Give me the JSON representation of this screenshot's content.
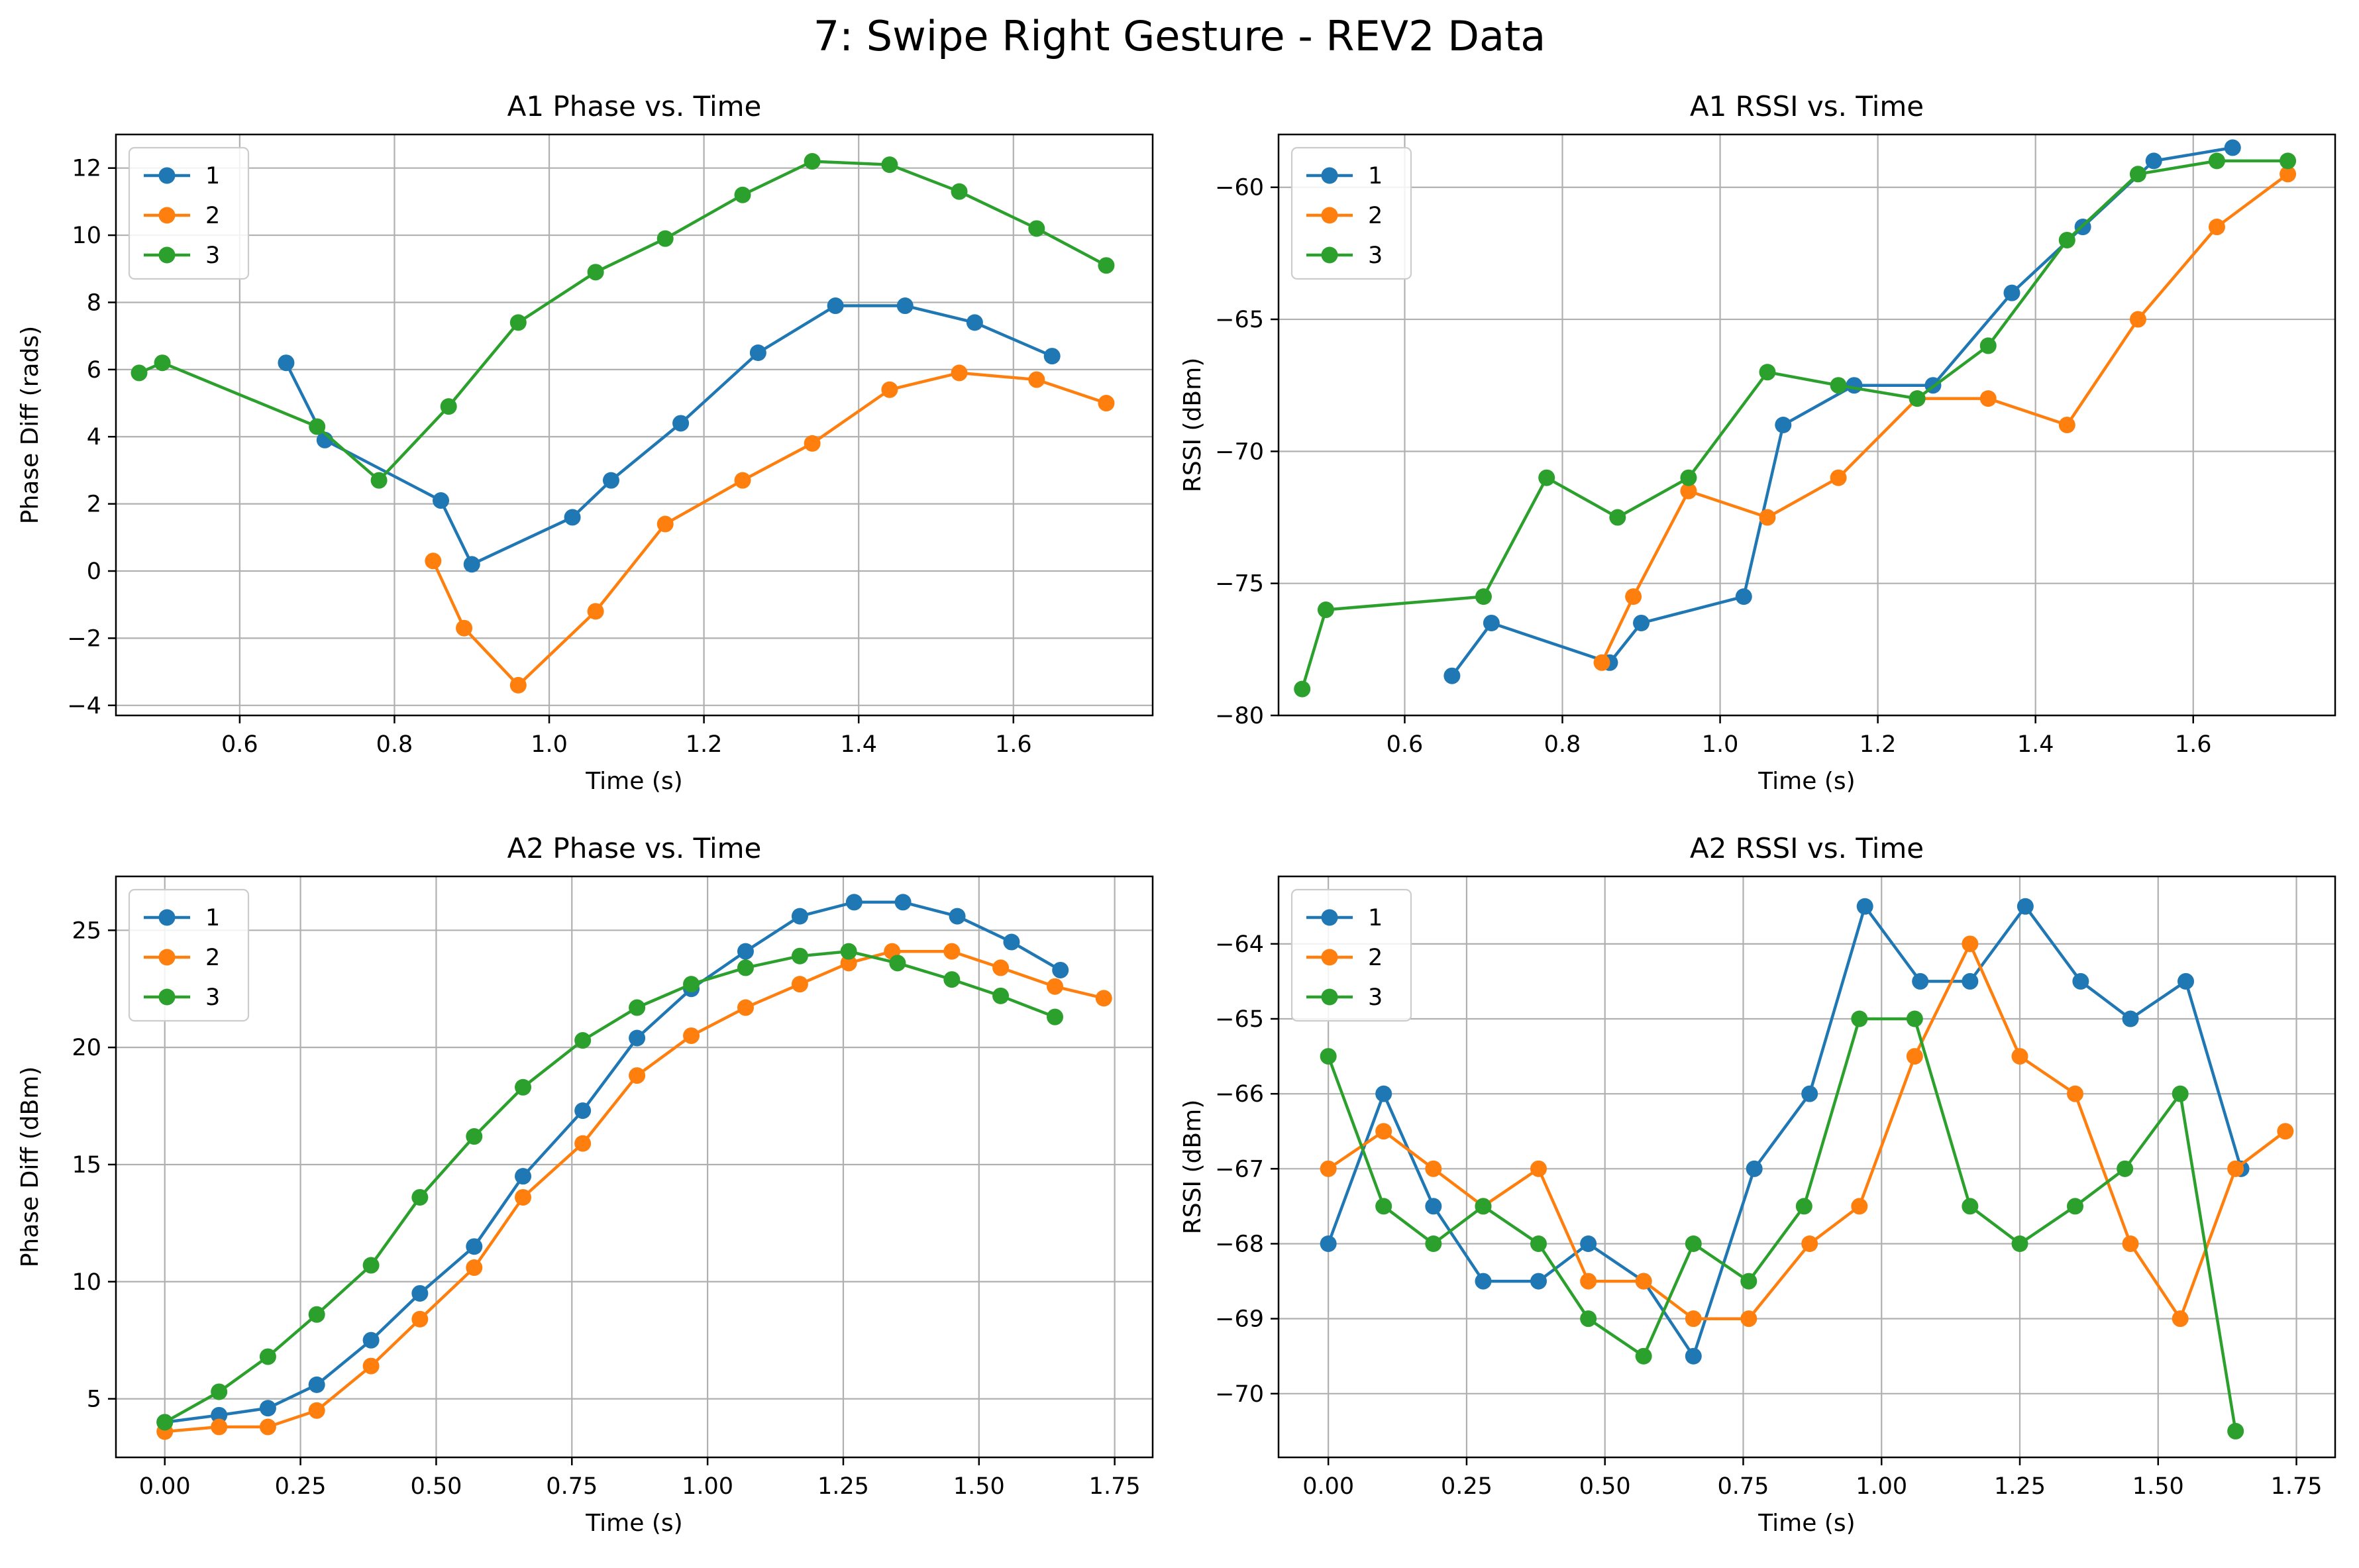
{
  "figure": {
    "title": "7: Swipe Right Gesture - REV2 Data"
  },
  "colors": {
    "s1": "#1f77b4",
    "s2": "#ff7f0e",
    "s3": "#2ca02c"
  },
  "chart_data": [
    {
      "type": "line",
      "title": "A1 Phase vs. Time",
      "xlabel": "Time (s)",
      "ylabel": "Phase Diff (rads)",
      "xlim": [
        0.44,
        1.78
      ],
      "ylim": [
        -4.3,
        13.0
      ],
      "xticks": [
        0.6,
        0.8,
        1.0,
        1.2,
        1.4,
        1.6
      ],
      "xtick_labels": [
        "0.6",
        "0.8",
        "1.0",
        "1.2",
        "1.4",
        "1.6"
      ],
      "yticks": [
        -4,
        -2,
        0,
        2,
        4,
        6,
        8,
        10,
        12
      ],
      "ytick_labels": [
        "−4",
        "−2",
        "0",
        "2",
        "4",
        "6",
        "8",
        "10",
        "12"
      ],
      "legend": "upper-left",
      "grid": true,
      "series": [
        {
          "name": "1",
          "x": [
            0.66,
            0.71,
            0.86,
            0.9,
            1.03,
            1.08,
            1.17,
            1.27,
            1.37,
            1.46,
            1.55,
            1.65
          ],
          "y": [
            6.2,
            3.9,
            2.1,
            0.2,
            1.6,
            2.7,
            4.4,
            6.5,
            7.9,
            7.9,
            7.4,
            6.4
          ]
        },
        {
          "name": "2",
          "x": [
            0.85,
            0.89,
            0.96,
            1.06,
            1.15,
            1.25,
            1.34,
            1.44,
            1.53,
            1.63,
            1.72
          ],
          "y": [
            0.3,
            -1.7,
            -3.4,
            -1.2,
            1.4,
            2.7,
            3.8,
            5.4,
            5.9,
            5.7,
            5.0
          ]
        },
        {
          "name": "3",
          "x": [
            0.47,
            0.5,
            0.7,
            0.78,
            0.87,
            0.96,
            1.06,
            1.15,
            1.25,
            1.34,
            1.44,
            1.53,
            1.63,
            1.72
          ],
          "y": [
            5.9,
            6.2,
            4.3,
            2.7,
            4.9,
            7.4,
            8.9,
            9.9,
            11.2,
            12.2,
            12.1,
            11.3,
            10.2,
            9.1
          ]
        }
      ]
    },
    {
      "type": "line",
      "title": "A1 RSSI vs. Time",
      "xlabel": "Time (s)",
      "ylabel": "RSSI (dBm)",
      "xlim": [
        0.44,
        1.78
      ],
      "ylim": [
        -80,
        -58.0
      ],
      "xticks": [
        0.6,
        0.8,
        1.0,
        1.2,
        1.4,
        1.6
      ],
      "xtick_labels": [
        "0.6",
        "0.8",
        "1.0",
        "1.2",
        "1.4",
        "1.6"
      ],
      "yticks": [
        -80,
        -75,
        -70,
        -65,
        -60
      ],
      "ytick_labels": [
        "−80",
        "−75",
        "−70",
        "−65",
        "−60"
      ],
      "legend": "upper-left",
      "grid": true,
      "series": [
        {
          "name": "1",
          "x": [
            0.66,
            0.71,
            0.86,
            0.9,
            1.03,
            1.08,
            1.17,
            1.27,
            1.37,
            1.46,
            1.55,
            1.65
          ],
          "y": [
            -78.5,
            -76.5,
            -78,
            -76.5,
            -75.5,
            -69,
            -67.5,
            -67.5,
            -64,
            -61.5,
            -59,
            -58.5
          ]
        },
        {
          "name": "2",
          "x": [
            0.85,
            0.89,
            0.96,
            1.06,
            1.15,
            1.25,
            1.34,
            1.44,
            1.53,
            1.63,
            1.72
          ],
          "y": [
            -78,
            -75.5,
            -71.5,
            -72.5,
            -71,
            -68,
            -68,
            -69,
            -65,
            -61.5,
            -59.5
          ]
        },
        {
          "name": "3",
          "x": [
            0.47,
            0.5,
            0.7,
            0.78,
            0.87,
            0.96,
            1.06,
            1.15,
            1.25,
            1.34,
            1.44,
            1.53,
            1.63,
            1.72
          ],
          "y": [
            -79,
            -76,
            -75.5,
            -71,
            -72.5,
            -71,
            -67,
            -67.5,
            -68,
            -66,
            -62,
            -59.5,
            -59,
            -59
          ]
        }
      ]
    },
    {
      "type": "line",
      "title": "A2 Phase vs. Time",
      "xlabel": "Time (s)",
      "ylabel": "Phase Diff (dBm)",
      "xlim": [
        -0.09,
        1.82
      ],
      "ylim": [
        2.5,
        27.3
      ],
      "xticks": [
        0.0,
        0.25,
        0.5,
        0.75,
        1.0,
        1.25,
        1.5,
        1.75
      ],
      "xtick_labels": [
        "0.00",
        "0.25",
        "0.50",
        "0.75",
        "1.00",
        "1.25",
        "1.50",
        "1.75"
      ],
      "yticks": [
        5,
        10,
        15,
        20,
        25
      ],
      "ytick_labels": [
        "5",
        "10",
        "15",
        "20",
        "25"
      ],
      "legend": "upper-left",
      "grid": true,
      "series": [
        {
          "name": "1",
          "x": [
            0.0,
            0.1,
            0.19,
            0.28,
            0.38,
            0.47,
            0.57,
            0.66,
            0.77,
            0.87,
            0.97,
            1.07,
            1.17,
            1.27,
            1.36,
            1.46,
            1.56,
            1.65
          ],
          "y": [
            4.0,
            4.3,
            4.6,
            5.6,
            7.5,
            9.5,
            11.5,
            14.5,
            17.3,
            20.4,
            22.5,
            24.1,
            25.6,
            26.2,
            26.2,
            25.6,
            24.5,
            23.3
          ]
        },
        {
          "name": "2",
          "x": [
            0.0,
            0.1,
            0.19,
            0.28,
            0.38,
            0.47,
            0.57,
            0.66,
            0.77,
            0.87,
            0.97,
            1.07,
            1.17,
            1.26,
            1.34,
            1.45,
            1.54,
            1.64,
            1.73
          ],
          "y": [
            3.6,
            3.8,
            3.8,
            4.5,
            6.4,
            8.4,
            10.6,
            13.6,
            15.9,
            18.8,
            20.5,
            21.7,
            22.7,
            23.6,
            24.1,
            24.1,
            23.4,
            22.6,
            22.1
          ]
        },
        {
          "name": "3",
          "x": [
            0.0,
            0.1,
            0.19,
            0.28,
            0.38,
            0.47,
            0.57,
            0.66,
            0.77,
            0.87,
            0.97,
            1.07,
            1.17,
            1.26,
            1.35,
            1.45,
            1.54,
            1.64
          ],
          "y": [
            4.0,
            5.3,
            6.8,
            8.6,
            10.7,
            13.6,
            16.2,
            18.3,
            20.3,
            21.7,
            22.7,
            23.4,
            23.9,
            24.1,
            23.6,
            22.9,
            22.2,
            21.3
          ]
        }
      ]
    },
    {
      "type": "line",
      "title": "A2 RSSI vs. Time",
      "xlabel": "Time (s)",
      "ylabel": "RSSI (dBm)",
      "xlim": [
        -0.09,
        1.82
      ],
      "ylim": [
        -70.85,
        -63.1
      ],
      "xticks": [
        0.0,
        0.25,
        0.5,
        0.75,
        1.0,
        1.25,
        1.5,
        1.75
      ],
      "xtick_labels": [
        "0.00",
        "0.25",
        "0.50",
        "0.75",
        "1.00",
        "1.25",
        "1.50",
        "1.75"
      ],
      "yticks": [
        -70,
        -69,
        -68,
        -67,
        -66,
        -65,
        -64
      ],
      "ytick_labels": [
        "−70",
        "−69",
        "−68",
        "−67",
        "−66",
        "−65",
        "−64"
      ],
      "legend": "upper-left",
      "grid": true,
      "series": [
        {
          "name": "1",
          "x": [
            0.0,
            0.1,
            0.19,
            0.28,
            0.38,
            0.47,
            0.57,
            0.66,
            0.77,
            0.87,
            0.97,
            1.07,
            1.16,
            1.26,
            1.36,
            1.45,
            1.55,
            1.65
          ],
          "y": [
            -68,
            -66,
            -67.5,
            -68.5,
            -68.5,
            -68,
            -68.5,
            -69.5,
            -67,
            -66,
            -63.5,
            -64.5,
            -64.5,
            -63.5,
            -64.5,
            -65,
            -64.5,
            -67
          ]
        },
        {
          "name": "2",
          "x": [
            0.0,
            0.1,
            0.19,
            0.28,
            0.38,
            0.47,
            0.57,
            0.66,
            0.76,
            0.87,
            0.96,
            1.06,
            1.16,
            1.25,
            1.35,
            1.45,
            1.54,
            1.64,
            1.73
          ],
          "y": [
            -67,
            -66.5,
            -67,
            -67.5,
            -67,
            -68.5,
            -68.5,
            -69,
            -69,
            -68,
            -67.5,
            -65.5,
            -64,
            -65.5,
            -66,
            -68,
            -69,
            -67,
            -66.5
          ]
        },
        {
          "name": "3",
          "x": [
            0.0,
            0.1,
            0.19,
            0.28,
            0.38,
            0.47,
            0.57,
            0.66,
            0.76,
            0.86,
            0.96,
            1.06,
            1.16,
            1.25,
            1.35,
            1.44,
            1.54,
            1.64
          ],
          "y": [
            -65.5,
            -67.5,
            -68,
            -67.5,
            -68,
            -69,
            -69.5,
            -68,
            -68.5,
            -67.5,
            -65,
            -65,
            -67.5,
            -68,
            -67.5,
            -67,
            -66,
            -70.5
          ]
        }
      ]
    }
  ]
}
